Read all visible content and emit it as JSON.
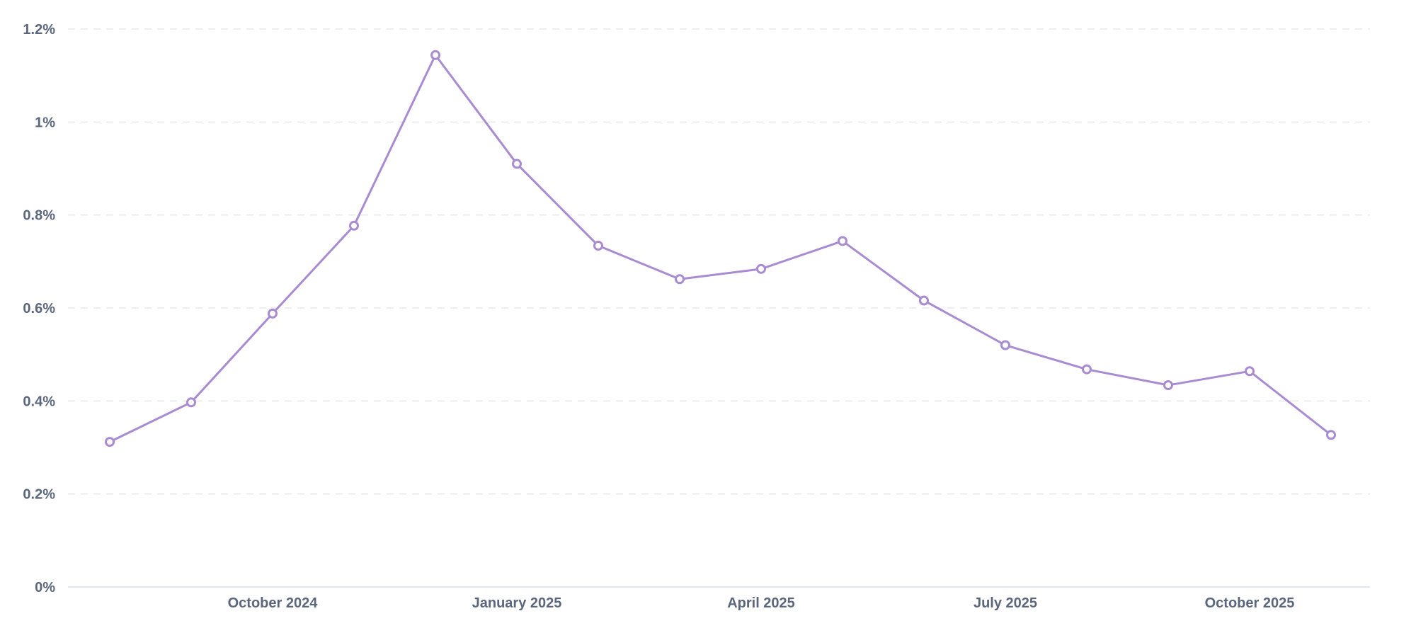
{
  "chart_data": {
    "type": "line",
    "title": "",
    "xlabel": "",
    "ylabel": "",
    "x": [
      "2024-08",
      "2024-09",
      "2024-10",
      "2024-11",
      "2024-12",
      "2025-01",
      "2025-02",
      "2025-03",
      "2025-04",
      "2025-05",
      "2025-06",
      "2025-07",
      "2025-08",
      "2025-09",
      "2025-10",
      "2025-11"
    ],
    "series": [
      {
        "values": [
          0.312,
          0.397,
          0.588,
          0.777,
          1.144,
          0.91,
          0.734,
          0.662,
          0.684,
          0.744,
          0.616,
          0.52,
          0.468,
          0.434,
          0.464,
          0.327
        ]
      }
    ],
    "ylim": [
      0,
      1.2
    ],
    "y_unit": "%",
    "y_ticks": [
      0,
      0.2,
      0.4,
      0.6,
      0.8,
      1,
      1.2
    ],
    "y_tick_labels": [
      "0%",
      "0.2%",
      "0.4%",
      "0.6%",
      "0.8%",
      "1%",
      "1.2%"
    ],
    "x_tick_labels": [
      {
        "label": "October 2024",
        "at": "2024-10"
      },
      {
        "label": "January 2025",
        "at": "2025-01"
      },
      {
        "label": "April 2025",
        "at": "2025-04"
      },
      {
        "label": "July 2025",
        "at": "2025-07"
      },
      {
        "label": "October 2025",
        "at": "2025-10"
      }
    ],
    "grid": "horizontal-dashed",
    "legend": "none",
    "colors": {
      "line": "#a98bd2",
      "text": "#5b667c",
      "grid": "#e6e8ec",
      "axis": "#e3e6ea"
    }
  }
}
